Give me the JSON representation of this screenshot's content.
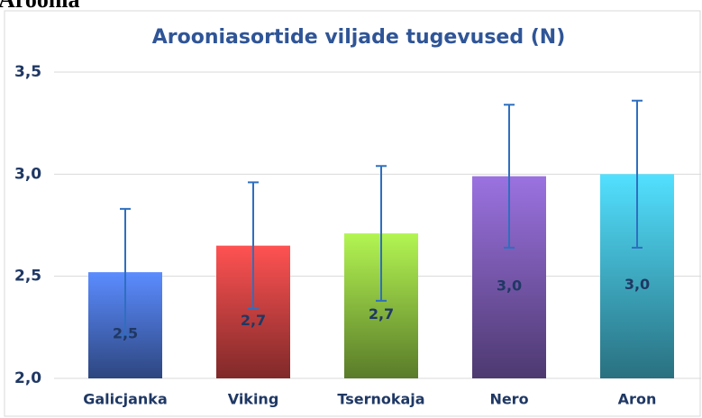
{
  "heading": "Aroonia",
  "chart_data": {
    "type": "bar",
    "title": "Arooniasortide viljade tugevused (N)",
    "categories": [
      "Galicjanka",
      "Viking",
      "Tsernokaja",
      "Nero",
      "Aron"
    ],
    "values": [
      2.52,
      2.65,
      2.71,
      2.99,
      3.0
    ],
    "value_labels": [
      "2,5",
      "2,7",
      "2,7",
      "3,0",
      "3,0"
    ],
    "errors": [
      0.31,
      0.31,
      0.33,
      0.35,
      0.36
    ],
    "colors": [
      "#5b8cff",
      "#ff5252",
      "#b3f552",
      "#9b72e0",
      "#52e0ff"
    ],
    "error_color": "#2e6fc0",
    "ylim": [
      2.0,
      3.5
    ],
    "yticks": [
      {
        "value": 2.0,
        "label": "2,0"
      },
      {
        "value": 2.5,
        "label": "2,5"
      },
      {
        "value": 3.0,
        "label": "3,0"
      },
      {
        "value": 3.5,
        "label": "3,5"
      }
    ],
    "grid": true
  }
}
